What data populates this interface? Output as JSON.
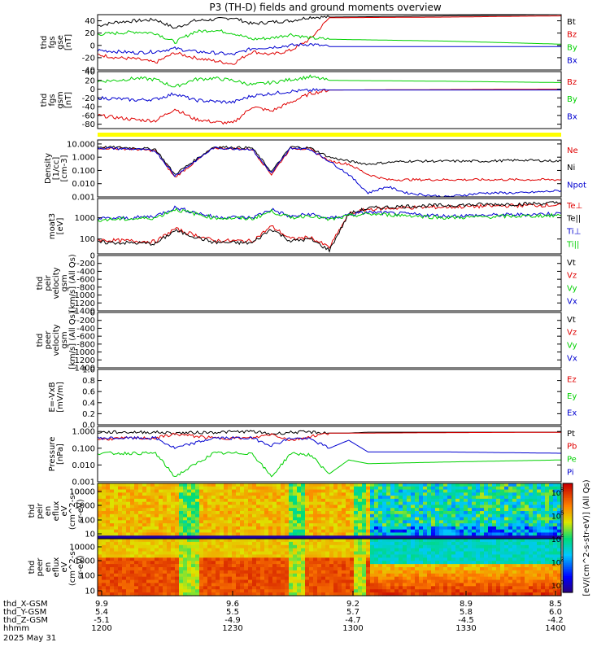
{
  "title": "P3 (TH-D) fields and ground moments overview",
  "colors": {
    "black": "#000000",
    "red": "#e00000",
    "green": "#00d000",
    "blue": "#0000d0",
    "yellow": "#ffff00",
    "frame": "#000000"
  },
  "colorbar": {
    "label": "[eV/(cm^2-s-str-eV)] (All Qs)",
    "ticks": [
      "10^8",
      "10^6",
      "10^4",
      "10^2",
      "10^0"
    ]
  },
  "footer": {
    "rows": [
      {
        "name": "thd_X-GSM",
        "values": [
          "9.9",
          "9.6",
          "9.2",
          "8.9",
          "8.5"
        ]
      },
      {
        "name": "thd_Y-GSM",
        "values": [
          "5.4",
          "5.5",
          "5.7",
          "5.8",
          "6.0"
        ]
      },
      {
        "name": "thd_Z-GSM",
        "values": [
          "-5.1",
          "-4.9",
          "-4.7",
          "-4.5",
          "-4.2"
        ]
      },
      {
        "name": "hhmm",
        "values": [
          "1200",
          "1230",
          "1300",
          "1330",
          "1400"
        ]
      }
    ],
    "date": "2025 May 31"
  },
  "chart_data": [
    {
      "type": "line",
      "id": "fgs_gse",
      "ylabel": [
        "thd",
        "fgs",
        "gse",
        "[nT]"
      ],
      "ylim": [
        -40,
        50
      ],
      "yticks": [
        "40",
        "20",
        "0",
        "-20",
        "-40"
      ],
      "legend": [
        {
          "label": "Bt",
          "color": "#000000"
        },
        {
          "label": "Bz",
          "color": "#e00000"
        },
        {
          "label": "By",
          "color": "#00d000"
        },
        {
          "label": "Bx",
          "color": "#0000d0"
        }
      ],
      "x": [
        "1200",
        "1205",
        "1210",
        "1215",
        "1220",
        "1225",
        "1230",
        "1235",
        "1240",
        "1245",
        "1250",
        "1255",
        "1300",
        "1330",
        "1400"
      ],
      "series": [
        {
          "name": "Bt",
          "color": "#000000",
          "values": [
            32,
            38,
            40,
            42,
            28,
            40,
            42,
            45,
            35,
            38,
            40,
            46,
            46,
            48,
            50
          ]
        },
        {
          "name": "Bz",
          "color": "#e00000",
          "values": [
            -15,
            -20,
            -22,
            -28,
            -12,
            -20,
            -25,
            -30,
            -10,
            -15,
            -8,
            10,
            45,
            46,
            48
          ]
        },
        {
          "name": "By",
          "color": "#00d000",
          "values": [
            18,
            20,
            22,
            20,
            5,
            22,
            25,
            20,
            10,
            12,
            18,
            12,
            10,
            7,
            2
          ]
        },
        {
          "name": "Bx",
          "color": "#0000d0",
          "values": [
            -8,
            -10,
            -12,
            -10,
            -5,
            -10,
            -12,
            -15,
            -5,
            -3,
            0,
            2,
            -2,
            -2,
            -2
          ]
        }
      ]
    },
    {
      "type": "line",
      "id": "fgs_gsm",
      "ylabel": [
        "thd",
        "fgs",
        "gsm",
        "[nT]"
      ],
      "ylim": [
        -90,
        40
      ],
      "yticks": [
        "40",
        "20",
        "0",
        "-20",
        "-40",
        "-60",
        "-80"
      ],
      "legend": [
        {
          "label": "Bz",
          "color": "#e00000"
        },
        {
          "label": "By",
          "color": "#00d000"
        },
        {
          "label": "Bx",
          "color": "#0000d0"
        }
      ],
      "x": [
        "1200",
        "1205",
        "1210",
        "1215",
        "1220",
        "1225",
        "1230",
        "1235",
        "1240",
        "1245",
        "1250",
        "1255",
        "1300",
        "1330",
        "1400"
      ],
      "series": [
        {
          "name": "Bz",
          "color": "#e00000",
          "values": [
            -60,
            -65,
            -70,
            -72,
            -45,
            -68,
            -75,
            -78,
            -40,
            -50,
            -30,
            -10,
            -2,
            -1,
            0
          ]
        },
        {
          "name": "By",
          "color": "#00d000",
          "values": [
            18,
            20,
            25,
            22,
            5,
            22,
            25,
            20,
            10,
            15,
            22,
            28,
            20,
            18,
            15
          ]
        },
        {
          "name": "Bx",
          "color": "#0000d0",
          "values": [
            -20,
            -22,
            -25,
            -23,
            -10,
            -25,
            -28,
            -30,
            -15,
            -10,
            -5,
            -3,
            -2,
            -2,
            -2
          ]
        }
      ]
    },
    {
      "type": "line",
      "id": "density",
      "log": true,
      "ylabel": [
        "Density",
        "[1/cc]",
        "[cm-3]"
      ],
      "ylim": [
        0.001,
        20
      ],
      "yticks": [
        "10.000",
        "1.000",
        "0.100",
        "0.010",
        "0.001"
      ],
      "legend": [
        {
          "label": "Ne",
          "color": "#e00000"
        },
        {
          "label": "Ni",
          "color": "#000000"
        },
        {
          "label": "Npot",
          "color": "#0000d0"
        }
      ],
      "x": [
        "1200",
        "1210",
        "1215",
        "1220",
        "1230",
        "1240",
        "1245",
        "1250",
        "1255",
        "1300",
        "1305",
        "1310",
        "1315",
        "1320",
        "1330",
        "1340",
        "1350",
        "1400"
      ],
      "series": [
        {
          "name": "Ne",
          "color": "#e00000",
          "values": [
            5,
            4,
            3,
            0.03,
            5,
            4,
            0.05,
            5,
            4,
            0.5,
            0.3,
            0.05,
            0.02,
            0.02,
            0.02,
            0.02,
            0.02,
            0.02
          ]
        },
        {
          "name": "Ni",
          "color": "#000000",
          "values": [
            6,
            5,
            4,
            0.05,
            6,
            5,
            0.08,
            6,
            5,
            1.0,
            0.5,
            0.3,
            0.4,
            0.5,
            0.5,
            0.5,
            0.6,
            0.5
          ]
        },
        {
          "name": "Npot",
          "color": "#0000d0",
          "values": [
            5,
            4,
            3,
            0.04,
            5,
            4,
            0.06,
            5,
            4,
            0.5,
            0.05,
            0.002,
            0.006,
            0.002,
            0.001,
            0.002,
            0.002,
            0.003
          ]
        }
      ]
    },
    {
      "type": "line",
      "id": "temperature",
      "log": true,
      "ylabel": [
        "moat3",
        "[eV]"
      ],
      "ylim": [
        20,
        8000
      ],
      "yticks": [
        "1000",
        "100"
      ],
      "legend": [
        {
          "label": "Te⊥",
          "color": "#e00000"
        },
        {
          "label": "Te||",
          "color": "#000000"
        },
        {
          "label": "Ti⊥",
          "color": "#0000d0"
        },
        {
          "label": "Ti||",
          "color": "#00d000"
        }
      ],
      "x": [
        "1200",
        "1210",
        "1215",
        "1220",
        "1230",
        "1240",
        "1245",
        "1250",
        "1255",
        "1300",
        "1305",
        "1310",
        "1320",
        "1330",
        "1340",
        "1350",
        "1400"
      ],
      "series": [
        {
          "name": "Te⊥",
          "color": "#e00000",
          "values": [
            90,
            80,
            75,
            300,
            85,
            80,
            400,
            100,
            120,
            40,
            1500,
            2500,
            3000,
            3200,
            3500,
            3800,
            4000
          ]
        },
        {
          "name": "Te||",
          "color": "#000000",
          "values": [
            70,
            65,
            60,
            250,
            70,
            65,
            300,
            80,
            100,
            30,
            1500,
            2800,
            3500,
            3800,
            4200,
            4500,
            5000
          ]
        },
        {
          "name": "Ti⊥",
          "color": "#0000d0",
          "values": [
            900,
            1000,
            1200,
            3000,
            1100,
            1000,
            2500,
            1100,
            1500,
            900,
            1400,
            1800,
            1500,
            1200,
            1300,
            1400,
            1600
          ]
        },
        {
          "name": "Ti||",
          "color": "#00d000",
          "values": [
            800,
            900,
            1000,
            2500,
            1000,
            900,
            2000,
            1000,
            1300,
            800,
            1200,
            1500,
            1300,
            1000,
            1100,
            1200,
            1300
          ]
        }
      ]
    },
    {
      "type": "line",
      "id": "peir_velocity",
      "ylabel": [
        "thd",
        "peir",
        "velocity",
        "gsm",
        "[km/s] (All Qs)"
      ],
      "ylim": [
        -1400,
        0
      ],
      "yticks": [
        "0",
        "-200",
        "-400",
        "-600",
        "-800",
        "-1000",
        "-1200",
        "-1400"
      ],
      "legend": [
        {
          "label": "Vt",
          "color": "#000000"
        },
        {
          "label": "Vz",
          "color": "#e00000"
        },
        {
          "label": "Vy",
          "color": "#00d000"
        },
        {
          "label": "Vx",
          "color": "#0000d0"
        }
      ],
      "series": []
    },
    {
      "type": "line",
      "id": "peer_velocity",
      "ylabel": [
        "thd",
        "peer",
        "velocity",
        "gsm",
        "[km/s] (All Qs)"
      ],
      "ylim": [
        -1400,
        0
      ],
      "yticks": [
        "0",
        "-200",
        "-400",
        "-600",
        "-800",
        "-1000",
        "-1200",
        "-1400"
      ],
      "legend": [
        {
          "label": "Vt",
          "color": "#000000"
        },
        {
          "label": "Vz",
          "color": "#e00000"
        },
        {
          "label": "Vy",
          "color": "#00d000"
        },
        {
          "label": "Vx",
          "color": "#0000d0"
        }
      ],
      "series": []
    },
    {
      "type": "line",
      "id": "efield",
      "ylabel": [
        "E=-VxB",
        "[mV/m]"
      ],
      "ylim": [
        0,
        1.0
      ],
      "yticks": [
        "1.0",
        "0.8",
        "0.6",
        "0.4",
        "0.2",
        "0.0"
      ],
      "legend": [
        {
          "label": "Ez",
          "color": "#e00000"
        },
        {
          "label": "Ey",
          "color": "#00d000"
        },
        {
          "label": "Ex",
          "color": "#0000d0"
        }
      ],
      "series": []
    },
    {
      "type": "line",
      "id": "pressure",
      "log": true,
      "ylabel": [
        "Pressure",
        "[nPa]"
      ],
      "ylim": [
        0.001,
        2
      ],
      "yticks": [
        "1.000",
        "0.100",
        "0.010",
        "0.001"
      ],
      "legend": [
        {
          "label": "Pt",
          "color": "#000000"
        },
        {
          "label": "Pb",
          "color": "#e00000"
        },
        {
          "label": "Pe",
          "color": "#00d000"
        },
        {
          "label": "Pi",
          "color": "#0000d0"
        }
      ],
      "x": [
        "1200",
        "1210",
        "1215",
        "1220",
        "1230",
        "1240",
        "1245",
        "1250",
        "1255",
        "1300",
        "1305",
        "1310",
        "1330",
        "1400"
      ],
      "series": [
        {
          "name": "Pt",
          "color": "#000000",
          "values": [
            0.9,
            0.9,
            0.9,
            0.8,
            0.9,
            1.0,
            0.7,
            0.9,
            0.9,
            0.8,
            0.8,
            0.9,
            0.9,
            0.9
          ]
        },
        {
          "name": "Pb",
          "color": "#e00000",
          "values": [
            0.35,
            0.4,
            0.4,
            0.7,
            0.4,
            0.4,
            0.7,
            0.3,
            0.5,
            0.8,
            0.8,
            0.8,
            0.85,
            0.9
          ]
        },
        {
          "name": "Pe",
          "color": "#00d000",
          "values": [
            0.05,
            0.05,
            0.05,
            0.002,
            0.05,
            0.05,
            0.002,
            0.05,
            0.04,
            0.003,
            0.02,
            0.012,
            0.015,
            0.02
          ]
        },
        {
          "name": "Pi",
          "color": "#0000d0",
          "values": [
            0.4,
            0.4,
            0.4,
            0.1,
            0.4,
            0.4,
            0.15,
            0.4,
            0.35,
            0.1,
            0.3,
            0.06,
            0.06,
            0.05
          ]
        }
      ]
    },
    {
      "type": "heatmap",
      "id": "peir_spec",
      "ylabel": [
        "thd",
        "peir",
        "en",
        "eflux",
        "eV",
        "(cm^2-s-",
        "sr-eV)"
      ],
      "yticks": [
        "10000",
        "1000",
        "100",
        "10"
      ]
    },
    {
      "type": "heatmap",
      "id": "peer_spec",
      "ylabel": [
        "thd",
        "peer",
        "en",
        "eflux",
        "eV",
        "(cm^2-s-",
        "sr-eV)"
      ],
      "yticks": [
        "10000",
        "1000",
        "100",
        "10"
      ]
    }
  ]
}
